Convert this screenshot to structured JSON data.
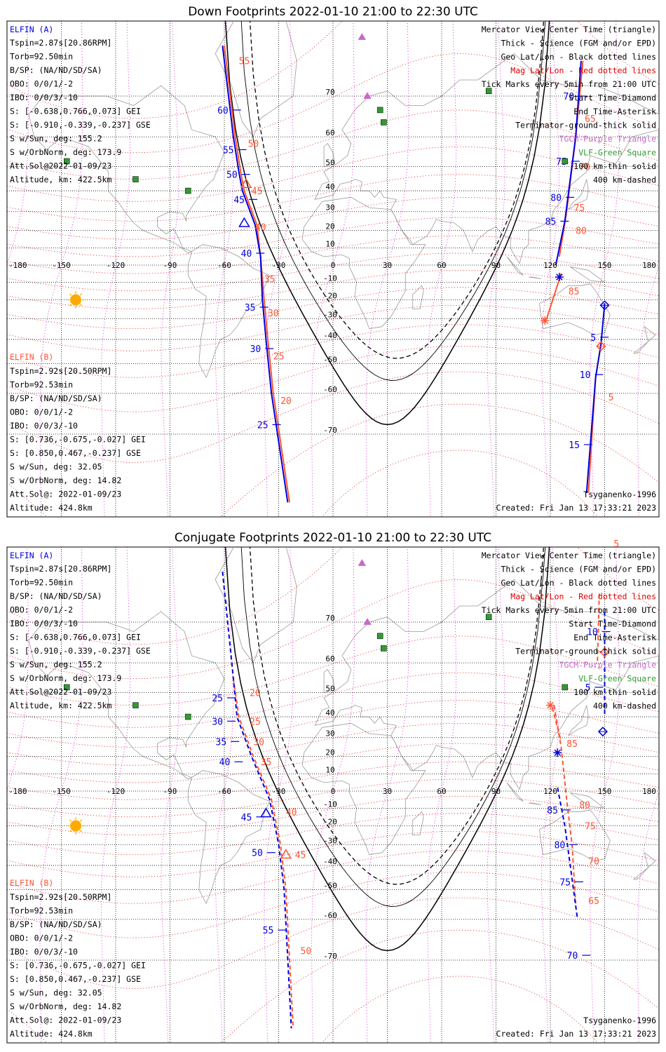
{
  "colors": {
    "elfin_a": "#0000dd",
    "elfin_b": "#ff5533",
    "mag_grid": "#dd0000",
    "geo_grid": "#000000",
    "lat_lines": "#dd00dd",
    "vlf": "#339933",
    "tgcm": "#cc66cc",
    "terminator": "#000000",
    "sun": "#ffaa00",
    "coast": "#999999"
  },
  "legend": [
    {
      "text": "Mercator View Center Time (triangle)",
      "color": "#000000"
    },
    {
      "text": "Thick - Science (FGM and/or EPD)",
      "color": "#000000"
    },
    {
      "text": "Geo Lat/Lon - Black dotted lines",
      "color": "#000000"
    },
    {
      "text": "Mag Lat/Lon - Red dotted lines",
      "color": "#dd0000"
    },
    {
      "text": "Tick Marks every 5min from 21:00 UTC",
      "color": "#000000"
    },
    {
      "text": "Start Time-Diamond",
      "color": "#000000"
    },
    {
      "text": "End Time-Asterisk",
      "color": "#000000"
    },
    {
      "text": "Terminator-ground-thick solid",
      "color": "#000000"
    },
    {
      "text": "TGCM-Purple Triangle",
      "color": "#cc66cc"
    },
    {
      "text": "VLF-Green Square",
      "color": "#339933"
    },
    {
      "text": "100 km-thin solid",
      "color": "#000000"
    },
    {
      "text": "400 km-dashed",
      "color": "#000000"
    }
  ],
  "elfin_a": {
    "title": "ELFIN (A)",
    "lines": [
      "Tspin=2.87s[20.86RPM]",
      "Torb=92.50min",
      "B/SP: (NA/ND/SD/SA)",
      "OBO: 0/0/1/-2",
      "IBO: 0/0/3/-10",
      "S: [-0.638,0.766,0.073] GEI",
      "S: [-0.910,-0.339,-0.237] GSE",
      "S w/Sun, deg: 155.2",
      "S w/OrbNorm, deg: 173.9",
      "Att.Sol@2022-01-09/23",
      "Altitude, km: 422.5km"
    ]
  },
  "elfin_b": {
    "title": "ELFIN (B)",
    "lines": [
      "Tspin=2.92s[20.50RPM]",
      "Torb=92.53min",
      "B/SP: (NA/ND/SD/SA)",
      "OBO: 0/0/1/-2",
      "IBO: 0/0/3/-10",
      "S: [0.736,-0.675,-0.027] GEI",
      "S: [0.850,0.467,-0.237] GSE",
      "S w/Sun, deg: 32.05",
      "S w/OrbNorm, deg: 14.82",
      "Att.Sol@: 2022-01-09/23",
      "Altitude: 424.8km"
    ]
  },
  "model": "Tsyganenko-1996",
  "created": "Created: Fri Jan 13 17:33:21 2023",
  "lon_labels": [
    "-180",
    "-150",
    "-120",
    "-90",
    "-60",
    "-30",
    "0",
    "30",
    "60",
    "90",
    "120",
    "150",
    "180"
  ],
  "lat_labels": [
    "70",
    "60",
    "50",
    "40",
    "30",
    "20",
    "10",
    "-10",
    "-20",
    "-30",
    "-40",
    "-50",
    "-60",
    "-70"
  ],
  "vlf_sites": [
    [
      -147,
      52
    ],
    [
      -109,
      45
    ],
    [
      -80,
      40
    ],
    [
      26,
      67
    ],
    [
      28,
      64
    ],
    [
      86,
      71
    ],
    [
      128,
      52
    ]
  ],
  "tgcm_sites": [
    [
      16,
      79
    ],
    [
      19,
      70
    ]
  ],
  "panels": [
    {
      "title": "Down Footprints 2022-01-10 21:00 to 22:30 UTC",
      "track_a": [
        [
          -61,
          78
        ],
        [
          -55,
          60
        ],
        [
          -52,
          48
        ],
        [
          -50,
          40
        ],
        [
          -43,
          23
        ],
        [
          -40,
          5
        ],
        [
          -39,
          -20
        ],
        [
          -37,
          -40
        ],
        [
          -34,
          -60
        ],
        [
          -25,
          -80
        ]
      ],
      "track_b": [
        [
          -60,
          78
        ],
        [
          -54,
          60
        ],
        [
          -51,
          48
        ],
        [
          -49,
          40
        ],
        [
          -42,
          23
        ],
        [
          -40,
          5
        ],
        [
          -38,
          -20
        ],
        [
          -36,
          -40
        ],
        [
          -33,
          -60
        ],
        [
          -24,
          -80
        ]
      ],
      "track_a2": [
        [
          140,
          -79
        ],
        [
          145,
          -55
        ],
        [
          148,
          -42
        ],
        [
          150,
          -22
        ]
      ],
      "track_b2": [
        [
          141,
          -79
        ],
        [
          145,
          -55
        ],
        [
          148,
          -42
        ]
      ],
      "track_a3": [
        [
          123,
          0
        ],
        [
          128,
          25
        ],
        [
          134,
          60
        ],
        [
          137,
          76
        ]
      ],
      "track_b3": [
        [
          125,
          5
        ],
        [
          129,
          30
        ],
        [
          134,
          60
        ],
        [
          138,
          76
        ]
      ],
      "b_drop": [
        [
          126,
          -5
        ],
        [
          118,
          -30
        ]
      ],
      "ticks_a": [
        {
          "t": "60",
          "lon": -57,
          "lat": 67
        },
        {
          "t": "55",
          "lon": -54,
          "lat": 56
        },
        {
          "t": "50",
          "lon": -52,
          "lat": 47
        },
        {
          "t": "45",
          "lon": -48,
          "lat": 36
        },
        {
          "t": "40",
          "lon": -44,
          "lat": 7
        },
        {
          "t": "35",
          "lon": -42,
          "lat": -24
        },
        {
          "t": "30",
          "lon": -39,
          "lat": -44
        },
        {
          "t": "25",
          "lon": -35,
          "lat": -68
        },
        {
          "t": "85",
          "lon": 124,
          "lat": 25
        },
        {
          "t": "80",
          "lon": 127,
          "lat": 37
        },
        {
          "t": "75",
          "lon": 130,
          "lat": 52
        },
        {
          "t": "70",
          "lon": 134,
          "lat": 70
        },
        {
          "t": "5",
          "lon": 146,
          "lat": -39
        },
        {
          "t": "10",
          "lon": 143,
          "lat": -54
        },
        {
          "t": "15",
          "lon": 137,
          "lat": -72
        }
      ],
      "ticks_b": [
        {
          "t": "55",
          "lon": -52,
          "lat": 76
        },
        {
          "t": "50",
          "lon": -47,
          "lat": 58
        },
        {
          "t": "45",
          "lon": -45,
          "lat": 40
        },
        {
          "t": "40",
          "lon": -43,
          "lat": 22
        },
        {
          "t": "35",
          "lon": -38,
          "lat": -8
        },
        {
          "t": "30",
          "lon": -36,
          "lat": -27
        },
        {
          "t": "25",
          "lon": -33,
          "lat": -47
        },
        {
          "t": "20",
          "lon": -29,
          "lat": -62
        },
        {
          "t": "85",
          "lon": 130,
          "lat": -15
        },
        {
          "t": "80",
          "lon": 134,
          "lat": 20
        },
        {
          "t": "75",
          "lon": 133,
          "lat": 32
        },
        {
          "t": "70",
          "lon": 136,
          "lat": 50
        },
        {
          "t": "65",
          "lon": 139,
          "lat": 65
        },
        {
          "t": "5",
          "lon": 152,
          "lat": -61
        }
      ],
      "a_start": [
        150,
        -23
      ],
      "b_start": [
        148,
        -43
      ],
      "a_end": [
        125,
        -7
      ],
      "b_end": [
        117,
        -31
      ],
      "a_center": [
        -49,
        24
      ],
      "b_center": [
        -48,
        43
      ]
    },
    {
      "title": "Conjugate Footprints 2022-01-10 21:00 to 22:30 UTC",
      "track_a": [
        [
          -61,
          78
        ],
        [
          -55,
          55
        ],
        [
          -53,
          40
        ],
        [
          -45,
          20
        ],
        [
          -35,
          -5
        ],
        [
          -30,
          -30
        ],
        [
          -27,
          -50
        ],
        [
          -23,
          -80
        ]
      ],
      "track_b": [
        [
          -55,
          55
        ],
        [
          -52,
          40
        ],
        [
          -44,
          20
        ],
        [
          -34,
          -5
        ],
        [
          -29,
          -30
        ],
        [
          -26,
          -50
        ],
        [
          -22,
          -80
        ]
      ],
      "track_a2": [
        [
          150,
          72
        ],
        [
          150,
          58
        ],
        [
          150,
          40
        ]
      ],
      "track_b2": [
        [
          147,
          75
        ],
        [
          146,
          60
        ]
      ],
      "track_a3": [
        [
          124,
          2
        ],
        [
          128,
          -20
        ],
        [
          131,
          -40
        ],
        [
          135,
          -60
        ]
      ],
      "track_b3": [
        [
          122,
          45
        ],
        [
          126,
          25
        ],
        [
          129,
          -5
        ],
        [
          132,
          -30
        ],
        [
          134,
          -55
        ]
      ],
      "b_drop": [
        [
          121,
          44
        ],
        [
          126,
          28
        ]
      ],
      "ticks_a": [
        {
          "t": "25",
          "lon": -60,
          "lat": 48
        },
        {
          "t": "30",
          "lon": -60,
          "lat": 38
        },
        {
          "t": "35",
          "lon": -58,
          "lat": 28
        },
        {
          "t": "40",
          "lon": -56,
          "lat": 17
        },
        {
          "t": "45",
          "lon": -44,
          "lat": -15
        },
        {
          "t": "50",
          "lon": -38,
          "lat": -34
        },
        {
          "t": "55",
          "lon": -32,
          "lat": -63
        },
        {
          "t": "70",
          "lon": 136,
          "lat": -69
        },
        {
          "t": "75",
          "lon": 132,
          "lat": -47
        },
        {
          "t": "80",
          "lon": 129,
          "lat": -30
        },
        {
          "t": "85",
          "lon": 125,
          "lat": -11
        },
        {
          "t": "5",
          "lon": 143,
          "lat": 52
        },
        {
          "t": "10",
          "lon": 147,
          "lat": 68
        }
      ],
      "ticks_b": [
        {
          "t": "20",
          "lon": -46,
          "lat": 50
        },
        {
          "t": "25",
          "lon": -46,
          "lat": 38
        },
        {
          "t": "30",
          "lon": -44,
          "lat": 28
        },
        {
          "t": "35",
          "lon": -40,
          "lat": 17
        },
        {
          "t": "40",
          "lon": -26,
          "lat": -12
        },
        {
          "t": "45",
          "lon": -21,
          "lat": -35
        },
        {
          "t": "50",
          "lon": -18,
          "lat": -68
        },
        {
          "t": "65",
          "lon": 141,
          "lat": -54
        },
        {
          "t": "70",
          "lon": 141,
          "lat": -38
        },
        {
          "t": "75",
          "lon": 139,
          "lat": -20
        },
        {
          "t": "80",
          "lon": 136,
          "lat": -8
        },
        {
          "t": "85",
          "lon": 129,
          "lat": 27
        },
        {
          "t": "5",
          "lon": 155,
          "lat": 81
        }
      ],
      "a_start": [
        149,
        33
      ],
      "b_start": [
        150,
        63
      ],
      "a_end": [
        124,
        22
      ],
      "b_end": [
        120,
        45
      ],
      "a_center": [
        -37,
        -13
      ],
      "b_center": [
        -26,
        -35
      ]
    }
  ]
}
